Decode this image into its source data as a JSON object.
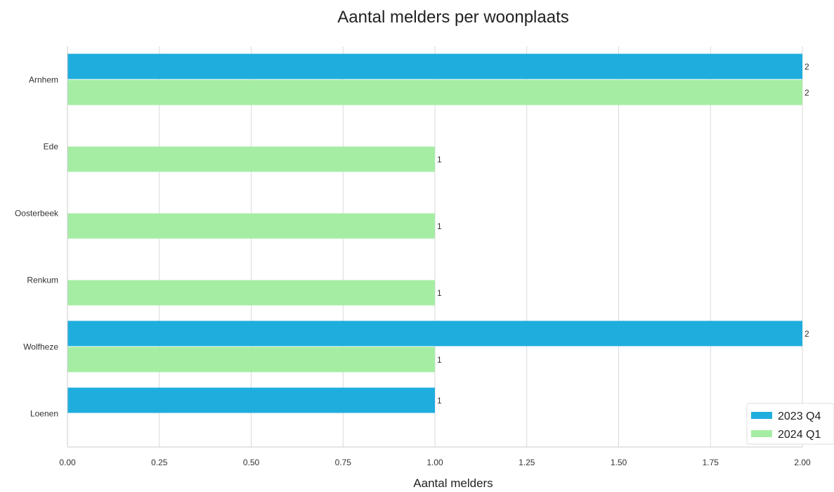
{
  "chart_data": {
    "type": "bar",
    "orientation": "horizontal",
    "title": "Aantal melders per woonplaats",
    "xlabel": "Aantal melders",
    "ylabel": "",
    "categories": [
      "Arnhem",
      "Ede",
      "Oosterbeek",
      "Renkum",
      "Wolfheze",
      "Loenen"
    ],
    "series": [
      {
        "name": "2023 Q4",
        "color": "#1fadde",
        "values": [
          2,
          null,
          null,
          null,
          2,
          1
        ],
        "labels": [
          "2",
          "",
          "",
          "",
          "2",
          "1"
        ]
      },
      {
        "name": "2024 Q1",
        "color": "#a6eda4",
        "values": [
          2,
          1,
          1,
          1,
          1,
          null
        ],
        "labels": [
          "2",
          "1",
          "1",
          "1",
          "1",
          ""
        ]
      }
    ],
    "xlim": [
      0,
      2
    ],
    "xticks": [
      "0.00",
      "0.25",
      "0.50",
      "0.75",
      "1.00",
      "1.25",
      "1.50",
      "1.75",
      "2.00"
    ],
    "grid": "vertical",
    "legend_position": "bottom-right"
  }
}
